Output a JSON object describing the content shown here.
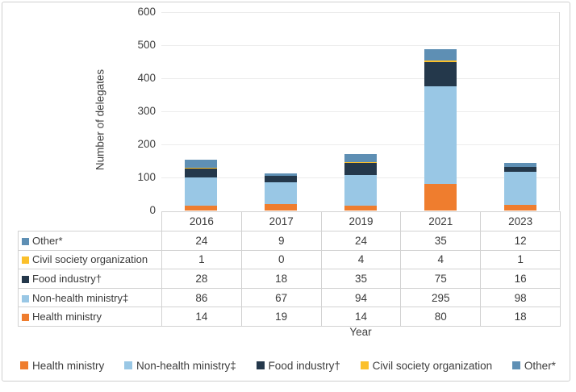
{
  "chart_data": {
    "type": "bar",
    "stacked": true,
    "xlabel": "Year",
    "ylabel": "Number of delegates",
    "ylim": [
      0,
      600
    ],
    "ytick_step": 100,
    "grid": true,
    "legend_position": "bottom",
    "categories": [
      "2016",
      "2017",
      "2019",
      "2021",
      "2023"
    ],
    "series": [
      {
        "name": "Health ministry",
        "color": "#EF7D2E",
        "values": [
          14,
          19,
          14,
          80,
          18
        ]
      },
      {
        "name": "Non-health ministry‡",
        "color": "#99C7E5",
        "values": [
          86,
          67,
          94,
          295,
          98
        ]
      },
      {
        "name": "Food industry†",
        "color": "#24384B",
        "values": [
          28,
          18,
          35,
          75,
          16
        ]
      },
      {
        "name": "Civil society organization",
        "color": "#FBC02B",
        "values": [
          1,
          0,
          4,
          4,
          1
        ]
      },
      {
        "name": "Other*",
        "color": "#5E8FB4",
        "values": [
          24,
          9,
          24,
          35,
          12
        ]
      }
    ],
    "table_row_order": [
      "Other*",
      "Civil society organization",
      "Food industry†",
      "Non-health ministry‡",
      "Health ministry"
    ]
  }
}
